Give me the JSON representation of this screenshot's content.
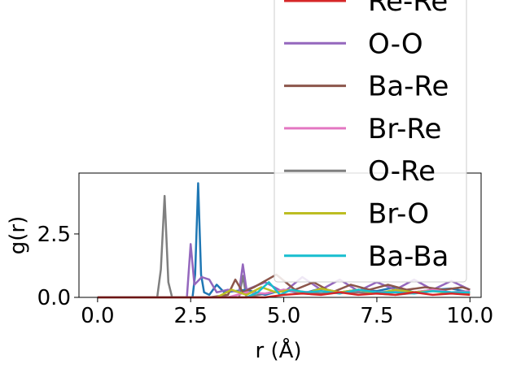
{
  "chart_data": {
    "type": "line",
    "xlabel": "r (Å)",
    "ylabel": "g(r)",
    "xlim": [
      -0.5,
      10.3
    ],
    "ylim": [
      0.0,
      4.9
    ],
    "xticks": [
      0.0,
      2.5,
      5.0,
      7.5,
      10.0
    ],
    "xtick_labels": [
      "0.0",
      "2.5",
      "5.0",
      "7.5",
      "10.0"
    ],
    "yticks": [
      0.0,
      2.5
    ],
    "ytick_labels": [
      "0.0",
      "2.5"
    ],
    "grid": false,
    "legend_position": "upper-right (extends above the plot)",
    "legend": [
      {
        "name": "Re-Re",
        "color": "#d62728"
      },
      {
        "name": "O-O",
        "color": "#9467bd"
      },
      {
        "name": "Ba-Re",
        "color": "#8c564b"
      },
      {
        "name": "Br-Re",
        "color": "#e377c2"
      },
      {
        "name": "O-Re",
        "color": "#7f7f7f"
      },
      {
        "name": "Br-O",
        "color": "#bcbd22"
      },
      {
        "name": "Ba-Ba",
        "color": "#17becf"
      }
    ],
    "series": [
      {
        "color": "#7f7f7f",
        "x": [
          0,
          1.6,
          1.7,
          1.8,
          1.9,
          2.0,
          3.0,
          3.8,
          3.9,
          4.0,
          5.0,
          6.0,
          7.0,
          8.0,
          9.0,
          10.0
        ],
        "y": [
          0,
          0,
          1.1,
          4.0,
          0.6,
          0,
          0,
          0,
          0.85,
          0,
          0.3,
          0.15,
          0.2,
          0.1,
          0.25,
          0.15
        ]
      },
      {
        "color": "#1f77b4",
        "x": [
          0,
          2.55,
          2.62,
          2.7,
          2.78,
          2.86,
          3.0,
          3.2,
          3.4,
          4.0,
          4.5,
          5.0,
          5.5,
          6.0,
          6.5,
          7.0,
          7.5,
          8.0,
          8.5,
          9.0,
          9.5,
          10.0
        ],
        "y": [
          0,
          0,
          0.9,
          4.5,
          0.9,
          0.2,
          0.1,
          0.5,
          0.2,
          0.3,
          0.1,
          0.3,
          0.15,
          0.35,
          0.2,
          0.3,
          0.25,
          0.4,
          0.2,
          0.3,
          0.35,
          0.2
        ]
      },
      {
        "color": "#9467bd",
        "x": [
          0,
          2.4,
          2.5,
          2.6,
          2.8,
          3.0,
          3.2,
          3.5,
          3.8,
          3.9,
          4.0,
          4.5,
          5.0,
          5.5,
          6.0,
          6.5,
          7.0,
          7.5,
          8.0,
          8.5,
          9.0,
          9.5,
          10.0
        ],
        "y": [
          0,
          0,
          2.1,
          0.5,
          0.8,
          0.7,
          0.2,
          0.3,
          0.2,
          1.3,
          0.3,
          0.6,
          0.2,
          0.8,
          0.3,
          0.7,
          0.25,
          0.6,
          0.3,
          0.7,
          0.3,
          0.65,
          0.3
        ]
      },
      {
        "color": "#8c564b",
        "x": [
          0,
          3.0,
          3.5,
          3.7,
          3.9,
          4.2,
          4.8,
          5.3,
          5.8,
          6.3,
          6.8,
          7.3,
          7.8,
          8.3,
          8.8,
          9.3,
          9.8,
          10.0
        ],
        "y": [
          0,
          0,
          0.1,
          0.7,
          0.2,
          0.4,
          0.9,
          0.3,
          0.6,
          0.2,
          0.5,
          0.3,
          0.5,
          0.3,
          0.4,
          0.3,
          0.4,
          0.3
        ]
      },
      {
        "color": "#e377c2",
        "x": [
          0,
          3.5,
          4.0,
          4.5,
          5.0,
          5.5,
          6.0,
          6.5,
          7.0,
          7.5,
          8.0,
          8.5,
          9.0,
          9.5,
          10.0
        ],
        "y": [
          0,
          0,
          0.2,
          0.15,
          0.3,
          0.2,
          0.25,
          0.2,
          0.3,
          0.2,
          0.25,
          0.2,
          0.3,
          0.2,
          0.25
        ]
      },
      {
        "color": "#bcbd22",
        "x": [
          0,
          3.2,
          3.6,
          4.0,
          4.4,
          4.8,
          5.2,
          5.6,
          6.0,
          6.5,
          7.0,
          7.5,
          8.0,
          8.5,
          9.0,
          9.5,
          10.0
        ],
        "y": [
          0,
          0,
          0.3,
          0.1,
          0.4,
          0.2,
          0.3,
          0.15,
          0.35,
          0.2,
          0.3,
          0.15,
          0.3,
          0.2,
          0.25,
          0.15,
          0.2
        ]
      },
      {
        "color": "#17becf",
        "x": [
          0,
          4.0,
          4.3,
          4.6,
          4.9,
          5.2,
          5.6,
          6.0,
          6.5,
          7.0,
          7.5,
          8.0,
          8.5,
          9.0,
          9.5,
          10.0
        ],
        "y": [
          0,
          0,
          0.2,
          0.6,
          0.1,
          0.3,
          0.2,
          0.25,
          0.15,
          0.3,
          0.2,
          0.2,
          0.15,
          0.25,
          0.2,
          0.2
        ]
      },
      {
        "color": "#d62728",
        "x": [
          0,
          4.5,
          5.0,
          5.5,
          6.0,
          6.5,
          7.0,
          7.5,
          8.0,
          8.5,
          9.0,
          9.5,
          10.0
        ],
        "y": [
          0,
          0,
          0.1,
          0.15,
          0.1,
          0.2,
          0.1,
          0.15,
          0.1,
          0.2,
          0.1,
          0.15,
          0.1
        ]
      }
    ]
  }
}
